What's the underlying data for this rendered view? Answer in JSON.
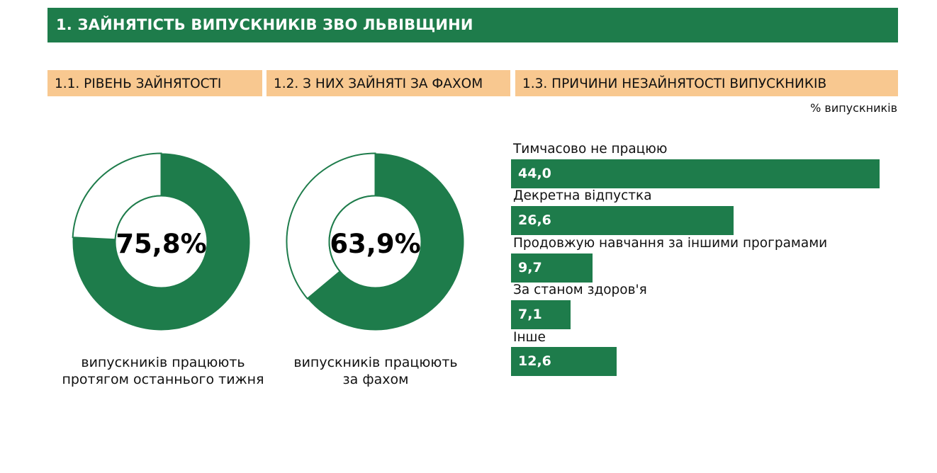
{
  "header": {
    "title": "1. ЗАЙНЯТІСТЬ ВИПУСКНИКІВ ЗВО ЛЬВІВЩИНИ"
  },
  "sections": [
    {
      "title": "1.1. РІВЕНЬ ЗАЙНЯТОСТІ"
    },
    {
      "title": "1.2. З НИХ ЗАЙНЯТІ ЗА ФАХОМ"
    },
    {
      "title": "1.3. ПРИЧИНИ НЕЗАЙНЯТОСТІ ВИПУСКНИКІВ"
    }
  ],
  "unit_label": "% випускників",
  "colors": {
    "primary": "#1e7c4b",
    "section_bg": "#f8c890",
    "ring_empty": "#ffffff"
  },
  "chart_data": [
    {
      "type": "pie",
      "variant": "donut",
      "value": 75.8,
      "center_label": "75,8%",
      "caption_line1": "випускників працюють",
      "caption_line2": "протягом останнього тижня"
    },
    {
      "type": "pie",
      "variant": "donut",
      "value": 63.9,
      "center_label": "63,9%",
      "caption_line1": "випускників працюють",
      "caption_line2": "за фахом"
    },
    {
      "type": "bar",
      "orientation": "horizontal",
      "categories": [
        "Тимчасово не працюю",
        "Декретна відпустка",
        "Продовжую навчання за іншими програмами",
        "За станом здоров'я",
        "Інше"
      ],
      "values": [
        44.0,
        26.6,
        9.7,
        7.1,
        12.6
      ],
      "value_labels": [
        "44,0",
        "26,6",
        "9,7",
        "7,1",
        "12,6"
      ],
      "xlim": [
        0,
        44
      ]
    }
  ]
}
